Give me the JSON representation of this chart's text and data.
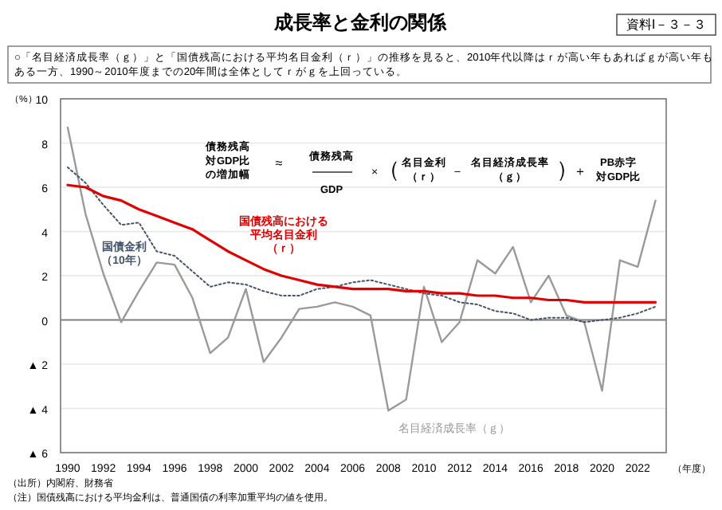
{
  "chart_data": {
    "type": "line",
    "title": "成長率と金利の関係",
    "subtitle": "○「名目経済成長率（ｇ）」と「国債残高における平均名目金利（ｒ）」の推移を見ると、2010年代以降はｒが高い年もあればｇが高い年もある一方、1990～2010年度までの20年間は全体としてｒがｇを上回っている。",
    "xlabel": "（年度）",
    "ylabel": "（%）",
    "annotations": [
      "資料Ⅰ－３－３",
      "債務残高対GDP比の増加幅",
      "≈",
      "債務残高",
      "GDP",
      "×",
      "（",
      "名目金利（ｒ）",
      "－",
      "名目経済成長率（ｇ）",
      "）",
      "＋",
      "PB赤字対GDP比",
      "（出所）内閣府、財務省",
      "（注）国債残高における平均金利は、普通国債の利率加重平均の値を使用。"
    ],
    "x": [
      1990,
      1991,
      1992,
      1993,
      1994,
      1995,
      1996,
      1997,
      1998,
      1999,
      2000,
      2001,
      2002,
      2003,
      2004,
      2005,
      2006,
      2007,
      2008,
      2009,
      2010,
      2011,
      2012,
      2013,
      2014,
      2015,
      2016,
      2017,
      2018,
      2019,
      2020,
      2021,
      2022,
      2023
    ],
    "series": [
      {
        "name": "名目経済成長率（ｇ）",
        "color": "#9a9a9a",
        "line_style": "solid",
        "values": [
          8.7,
          4.8,
          2.1,
          -0.1,
          1.3,
          2.6,
          2.5,
          1.0,
          -1.5,
          -0.8,
          1.4,
          -1.9,
          -0.8,
          0.5,
          0.6,
          0.8,
          0.6,
          0.2,
          -4.1,
          -3.6,
          1.5,
          -1.0,
          -0.1,
          2.7,
          2.1,
          3.3,
          0.8,
          2.0,
          0.2,
          -0.1,
          -3.2,
          2.7,
          2.4,
          5.4
        ]
      },
      {
        "name": "国債金利（10年）",
        "color": "#44546a",
        "line_style": "dotted",
        "values": [
          6.9,
          6.2,
          5.2,
          4.3,
          4.4,
          3.1,
          2.9,
          2.2,
          1.5,
          1.7,
          1.6,
          1.3,
          1.1,
          1.1,
          1.4,
          1.5,
          1.7,
          1.8,
          1.6,
          1.4,
          1.2,
          1.1,
          0.8,
          0.7,
          0.4,
          0.3,
          0.0,
          0.1,
          0.1,
          -0.1,
          0.0,
          0.1,
          0.3,
          0.6
        ]
      },
      {
        "name": "国債残高における平均名目金利（ｒ）",
        "color": "#e00000",
        "line_style": "solid",
        "values": [
          6.1,
          6.0,
          5.6,
          5.4,
          5.0,
          4.7,
          4.4,
          4.1,
          3.6,
          3.1,
          2.7,
          2.3,
          2.0,
          1.8,
          1.6,
          1.5,
          1.4,
          1.4,
          1.4,
          1.3,
          1.3,
          1.2,
          1.2,
          1.1,
          1.1,
          1.0,
          1.0,
          0.9,
          0.9,
          0.8,
          0.8,
          0.8,
          0.8,
          0.8
        ]
      }
    ],
    "xlim": [
      1989.6,
      2023.6
    ],
    "xticks": [
      1990,
      1992,
      1994,
      1996,
      1998,
      2000,
      2002,
      2004,
      2006,
      2008,
      2010,
      2012,
      2014,
      2016,
      2018,
      2020,
      2022
    ],
    "ylim": [
      -6,
      10
    ],
    "yticks": [
      {
        "value": -6,
        "label": "▲ 6"
      },
      {
        "value": -4,
        "label": "▲ 4"
      },
      {
        "value": -2,
        "label": "▲ 2"
      },
      0,
      2,
      4,
      6,
      8,
      10
    ],
    "ref_lines": [
      {
        "axis": "y",
        "value": 0,
        "color": "#808080"
      }
    ],
    "grid": "y",
    "legend": false,
    "marker": "none"
  }
}
